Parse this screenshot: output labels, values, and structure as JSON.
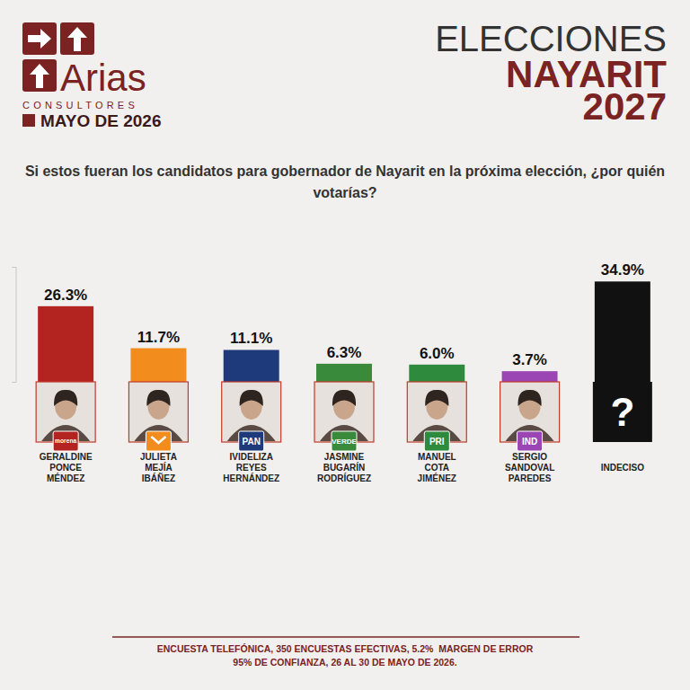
{
  "header": {
    "brand": "Arias",
    "brand_sub": "CONSULTORES",
    "date": "MAYO DE 2026"
  },
  "chart_data": {
    "type": "bar",
    "title": "ELECCIONES NAYARIT 2027",
    "subtitle": "Si estos fueran los candidatos para gobernador de Nayarit en la próxima elección, ¿por quién votarías?",
    "categories": [
      "GERALDINE PONCE MÉNDEZ",
      "JULIETA MEJÍA IBÁÑEZ",
      "IVIDELIZA REYES HERNÁNDEZ",
      "JASMINE BUGARÍN RODRÍGUEZ",
      "MANUEL COTA JIMÉNEZ",
      "SERGIO SANDOVAL PAREDES",
      "INDECISO"
    ],
    "values": [
      26.3,
      11.7,
      11.1,
      6.3,
      6.0,
      3.7,
      34.9
    ],
    "value_labels": [
      "26.3%",
      "11.7%",
      "11.1%",
      "6.3%",
      "6.0%",
      "3.7%",
      "34.9%"
    ],
    "colors": [
      "#b3231f",
      "#f28c1c",
      "#1f3a7a",
      "#3a8a3c",
      "#2e8b3e",
      "#9b45b5",
      "#111111"
    ],
    "badges": [
      "morena",
      null,
      "PAN",
      "VERDE",
      "PRI",
      "IND",
      null
    ],
    "portraits": [
      null,
      null,
      null,
      null,
      null,
      null,
      "?"
    ],
    "ylim": [
      0,
      40
    ],
    "yticks": [
      0,
      40
    ],
    "tick_labels": false,
    "grid": false,
    "data_labels": true,
    "annotations": [
      "ENCUESTA TELEFÓNICA, 350 ENCUESTAS EFECTIVAS, 5.2%  MARGEN DE ERROR",
      "95% DE CONFIANZA, 26 AL 30 DE MAYO DE 2026."
    ]
  }
}
